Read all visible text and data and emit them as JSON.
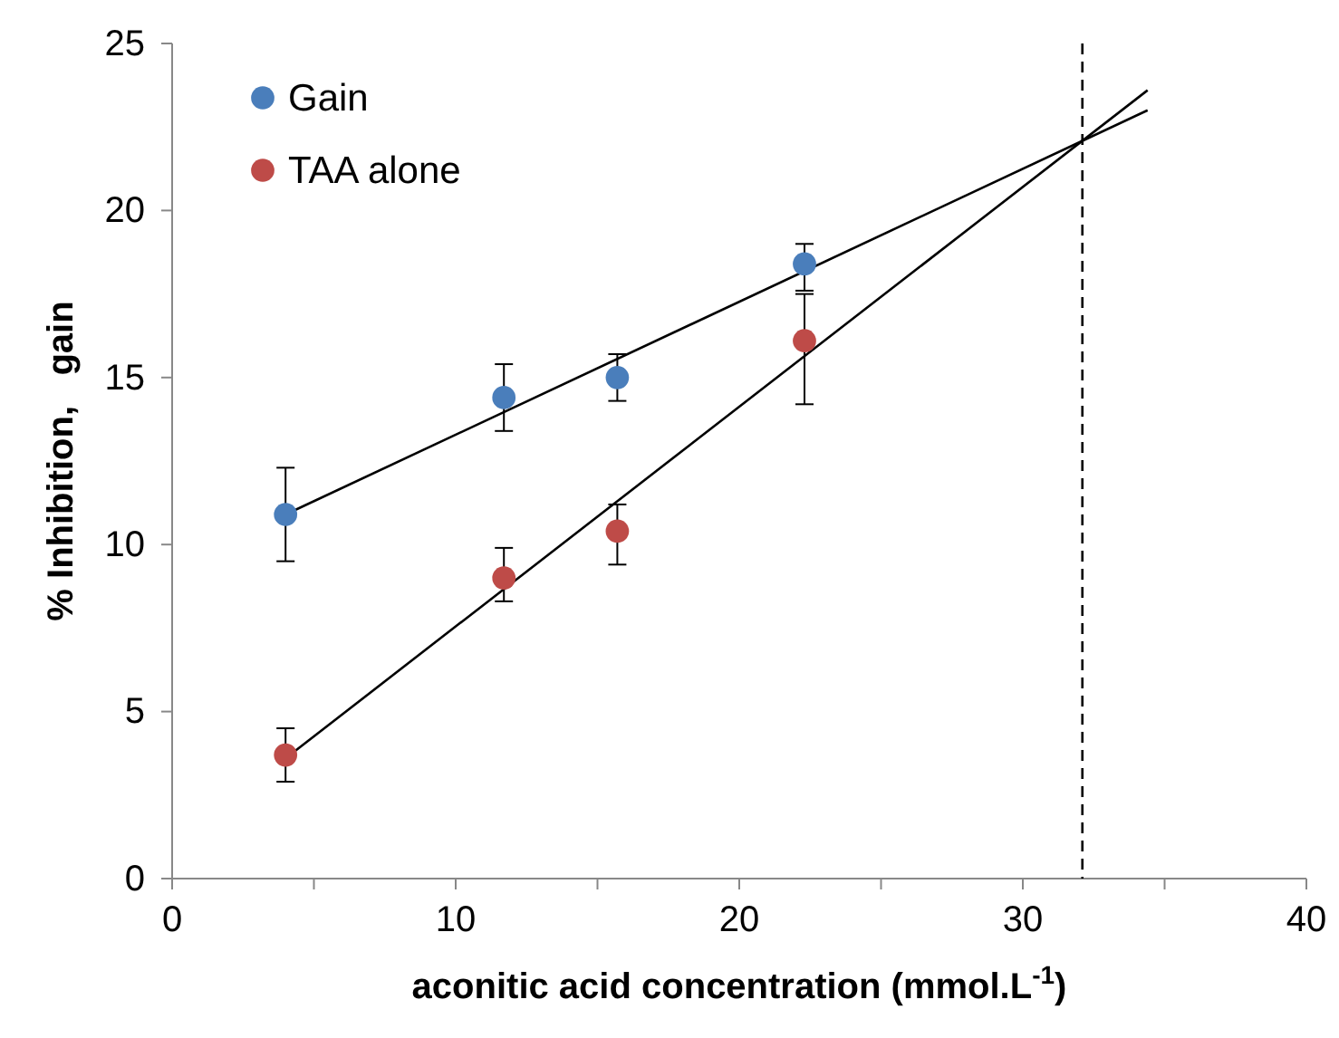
{
  "chart_data": {
    "type": "scatter",
    "xlabel": "aconitic acid concentration (mmol.L$^{-1}$)",
    "ylabel": "% Inhibition,   gain",
    "xlim": [
      0,
      40
    ],
    "ylim": [
      0,
      25
    ],
    "xticks": [
      0,
      {
        "value": 5,
        "label": null
      },
      10,
      {
        "value": 15,
        "label": null
      },
      20,
      {
        "value": 25,
        "label": null
      },
      30,
      {
        "value": 35,
        "label": null
      },
      40
    ],
    "yticks": [
      0,
      5,
      10,
      15,
      20,
      25
    ],
    "grid": false,
    "legend": "top left",
    "marker": "circle",
    "series": [
      {
        "name": "Gain",
        "color": "#4a7ebb",
        "x": [
          4,
          11.7,
          15.7,
          22.3
        ],
        "values": [
          10.9,
          14.4,
          15.0,
          18.4
        ],
        "errors": [
          [
            9.5,
            12.3
          ],
          [
            13.4,
            15.4
          ],
          [
            14.3,
            15.7
          ],
          [
            17.6,
            19.0
          ]
        ]
      },
      {
        "name": "TAA alone",
        "color": "#be4b48",
        "x": [
          4,
          11.7,
          15.7,
          22.3
        ],
        "values": [
          3.7,
          9.0,
          10.4,
          16.1
        ],
        "errors": [
          [
            2.9,
            4.5
          ],
          [
            8.3,
            9.9
          ],
          [
            9.4,
            11.2
          ],
          [
            14.2,
            17.5
          ]
        ]
      },
      {
        "type": "line",
        "color": "#000000",
        "marker": "none",
        "x": [
          4,
          34.4
        ],
        "values": [
          10.9,
          23.0
        ]
      },
      {
        "type": "line",
        "color": "#000000",
        "marker": "none",
        "x": [
          4,
          34.4
        ],
        "values": [
          3.6,
          23.6
        ]
      }
    ],
    "ref_lines": [
      {
        "axis": "x",
        "value": 32.1,
        "line_style": "dashed",
        "color": "#000000"
      }
    ]
  }
}
